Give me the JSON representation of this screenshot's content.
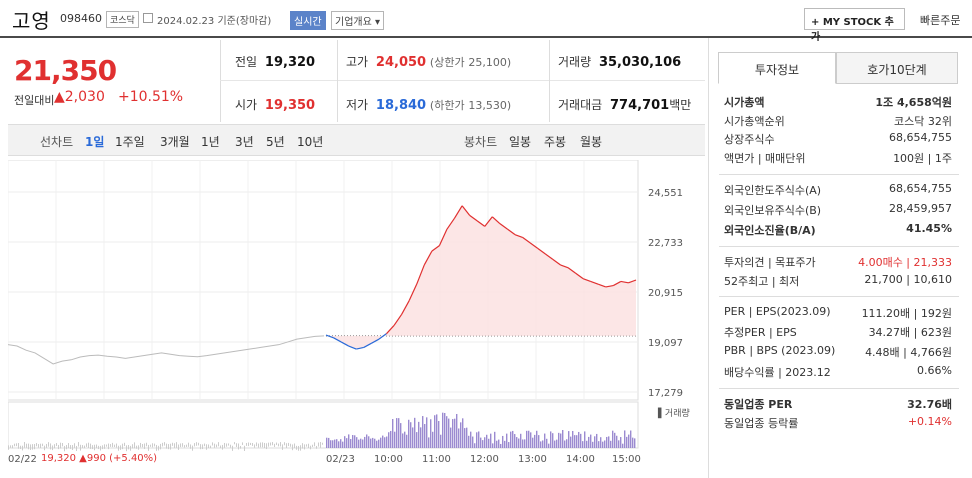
{
  "stock": {
    "name": "고영",
    "code": "098460",
    "market": "코스닥",
    "date": "2024.02.23",
    "basis": "기준(장마감)",
    "realtime": "실시간",
    "company": "기업개요 ▾"
  },
  "actions": {
    "mystock": "+ MY STOCK 추가",
    "quick_order": "빠른주문"
  },
  "price": {
    "current": "21,350",
    "change_label": "전일대비",
    "change": "▲2,030",
    "change_pct": "+10.51%"
  },
  "summary": {
    "prev_label": "전일",
    "prev": "19,320",
    "high_label": "고가",
    "high": "24,050",
    "upper_label": "(상한가",
    "upper": "25,100)",
    "volume_label": "거래량",
    "volume": "35,030,106",
    "open_label": "시가",
    "open": "19,350",
    "low_label": "저가",
    "low": "18,840",
    "lower_label": "(하한가",
    "lower": "13,530)",
    "amount_label": "거래대금",
    "amount": "774,701",
    "amount_unit": "백만"
  },
  "toolbar": {
    "line_label": "선차트",
    "line_items": [
      "1일",
      "1주일",
      "3개월",
      "1년",
      "3년",
      "5년",
      "10년"
    ],
    "candle_label": "봉차트",
    "candle_items": [
      "일봉",
      "주봉",
      "월봉"
    ]
  },
  "chart_data": {
    "type": "line",
    "y_ticks": [
      "24,551",
      "22,733",
      "20,915",
      "19,097",
      "17,279"
    ],
    "ylim": [
      17279,
      24551
    ],
    "x_ticks": [
      "02/22",
      "02/23",
      "10:00",
      "11:00",
      "12:00",
      "13:00",
      "14:00",
      "15:00"
    ],
    "prev_close": 19320,
    "volume_label": "거래량",
    "prev_day_values": [
      19000,
      18950,
      18800,
      18700,
      18500,
      18300,
      18400,
      18450,
      18550,
      18600,
      18620,
      18580,
      18550,
      18500,
      18550,
      18600,
      18650,
      18700,
      18650,
      18600,
      18580,
      18560,
      18600,
      18650,
      18700,
      18750,
      18800,
      18850,
      18900,
      18950,
      19000,
      19100,
      19200,
      19250,
      19300,
      19320
    ],
    "today_values": [
      19350,
      19250,
      19100,
      18950,
      18840,
      18900,
      19050,
      19200,
      19400,
      19700,
      20100,
      20600,
      21200,
      21900,
      22400,
      22600,
      23200,
      23600,
      24050,
      23700,
      23500,
      23300,
      23650,
      23400,
      23200,
      23000,
      22900,
      22700,
      22500,
      22300,
      22100,
      21900,
      21800,
      21600,
      21400,
      21300,
      21200,
      21100,
      21150,
      21300,
      21250,
      21350
    ],
    "footer": {
      "date": "02/22",
      "price": "19,320",
      "change": "▲990",
      "pct": "(+5.40%)"
    }
  },
  "invest_tabs": [
    "투자정보",
    "호가10단계"
  ],
  "invest": [
    {
      "k": "시가총액",
      "v": "1조 4,658억원",
      "hl": true
    },
    {
      "k": "시가총액순위",
      "v": "코스닥 32위"
    },
    {
      "k": "상장주식수",
      "v": "68,654,755"
    },
    {
      "k": "액면가 | 매매단위",
      "v": "100원 | 1주"
    },
    {
      "k": "외국인한도주식수(A)",
      "v": "68,654,755"
    },
    {
      "k": "외국인보유주식수(B)",
      "v": "28,459,957"
    },
    {
      "k": "외국인소진율(B/A)",
      "v": "41.45%",
      "hl": true
    },
    {
      "k": "투자의견 | 목표주가",
      "v": "4.00매수 | 21,333"
    },
    {
      "k": "52주최고 | 최저",
      "v": "21,700 | 10,610"
    },
    {
      "k": "PER | EPS(2023.09)",
      "v": "111.20배 | 192원"
    },
    {
      "k": "추정PER | EPS",
      "v": "34.27배 | 623원"
    },
    {
      "k": "PBR | BPS (2023.09)",
      "v": "4.48배 | 4,766원"
    },
    {
      "k": "배당수익률 | 2023.12",
      "v": "0.66%"
    },
    {
      "k": "동일업종 PER",
      "v": "32.76배",
      "hl": true
    },
    {
      "k": "동일업종 등락률",
      "v": "+0.14%"
    }
  ],
  "colors": {
    "up": "#e03030",
    "down": "#2a6ad8",
    "volume": "#9b8ad0",
    "fill": "#fbe2e2"
  }
}
